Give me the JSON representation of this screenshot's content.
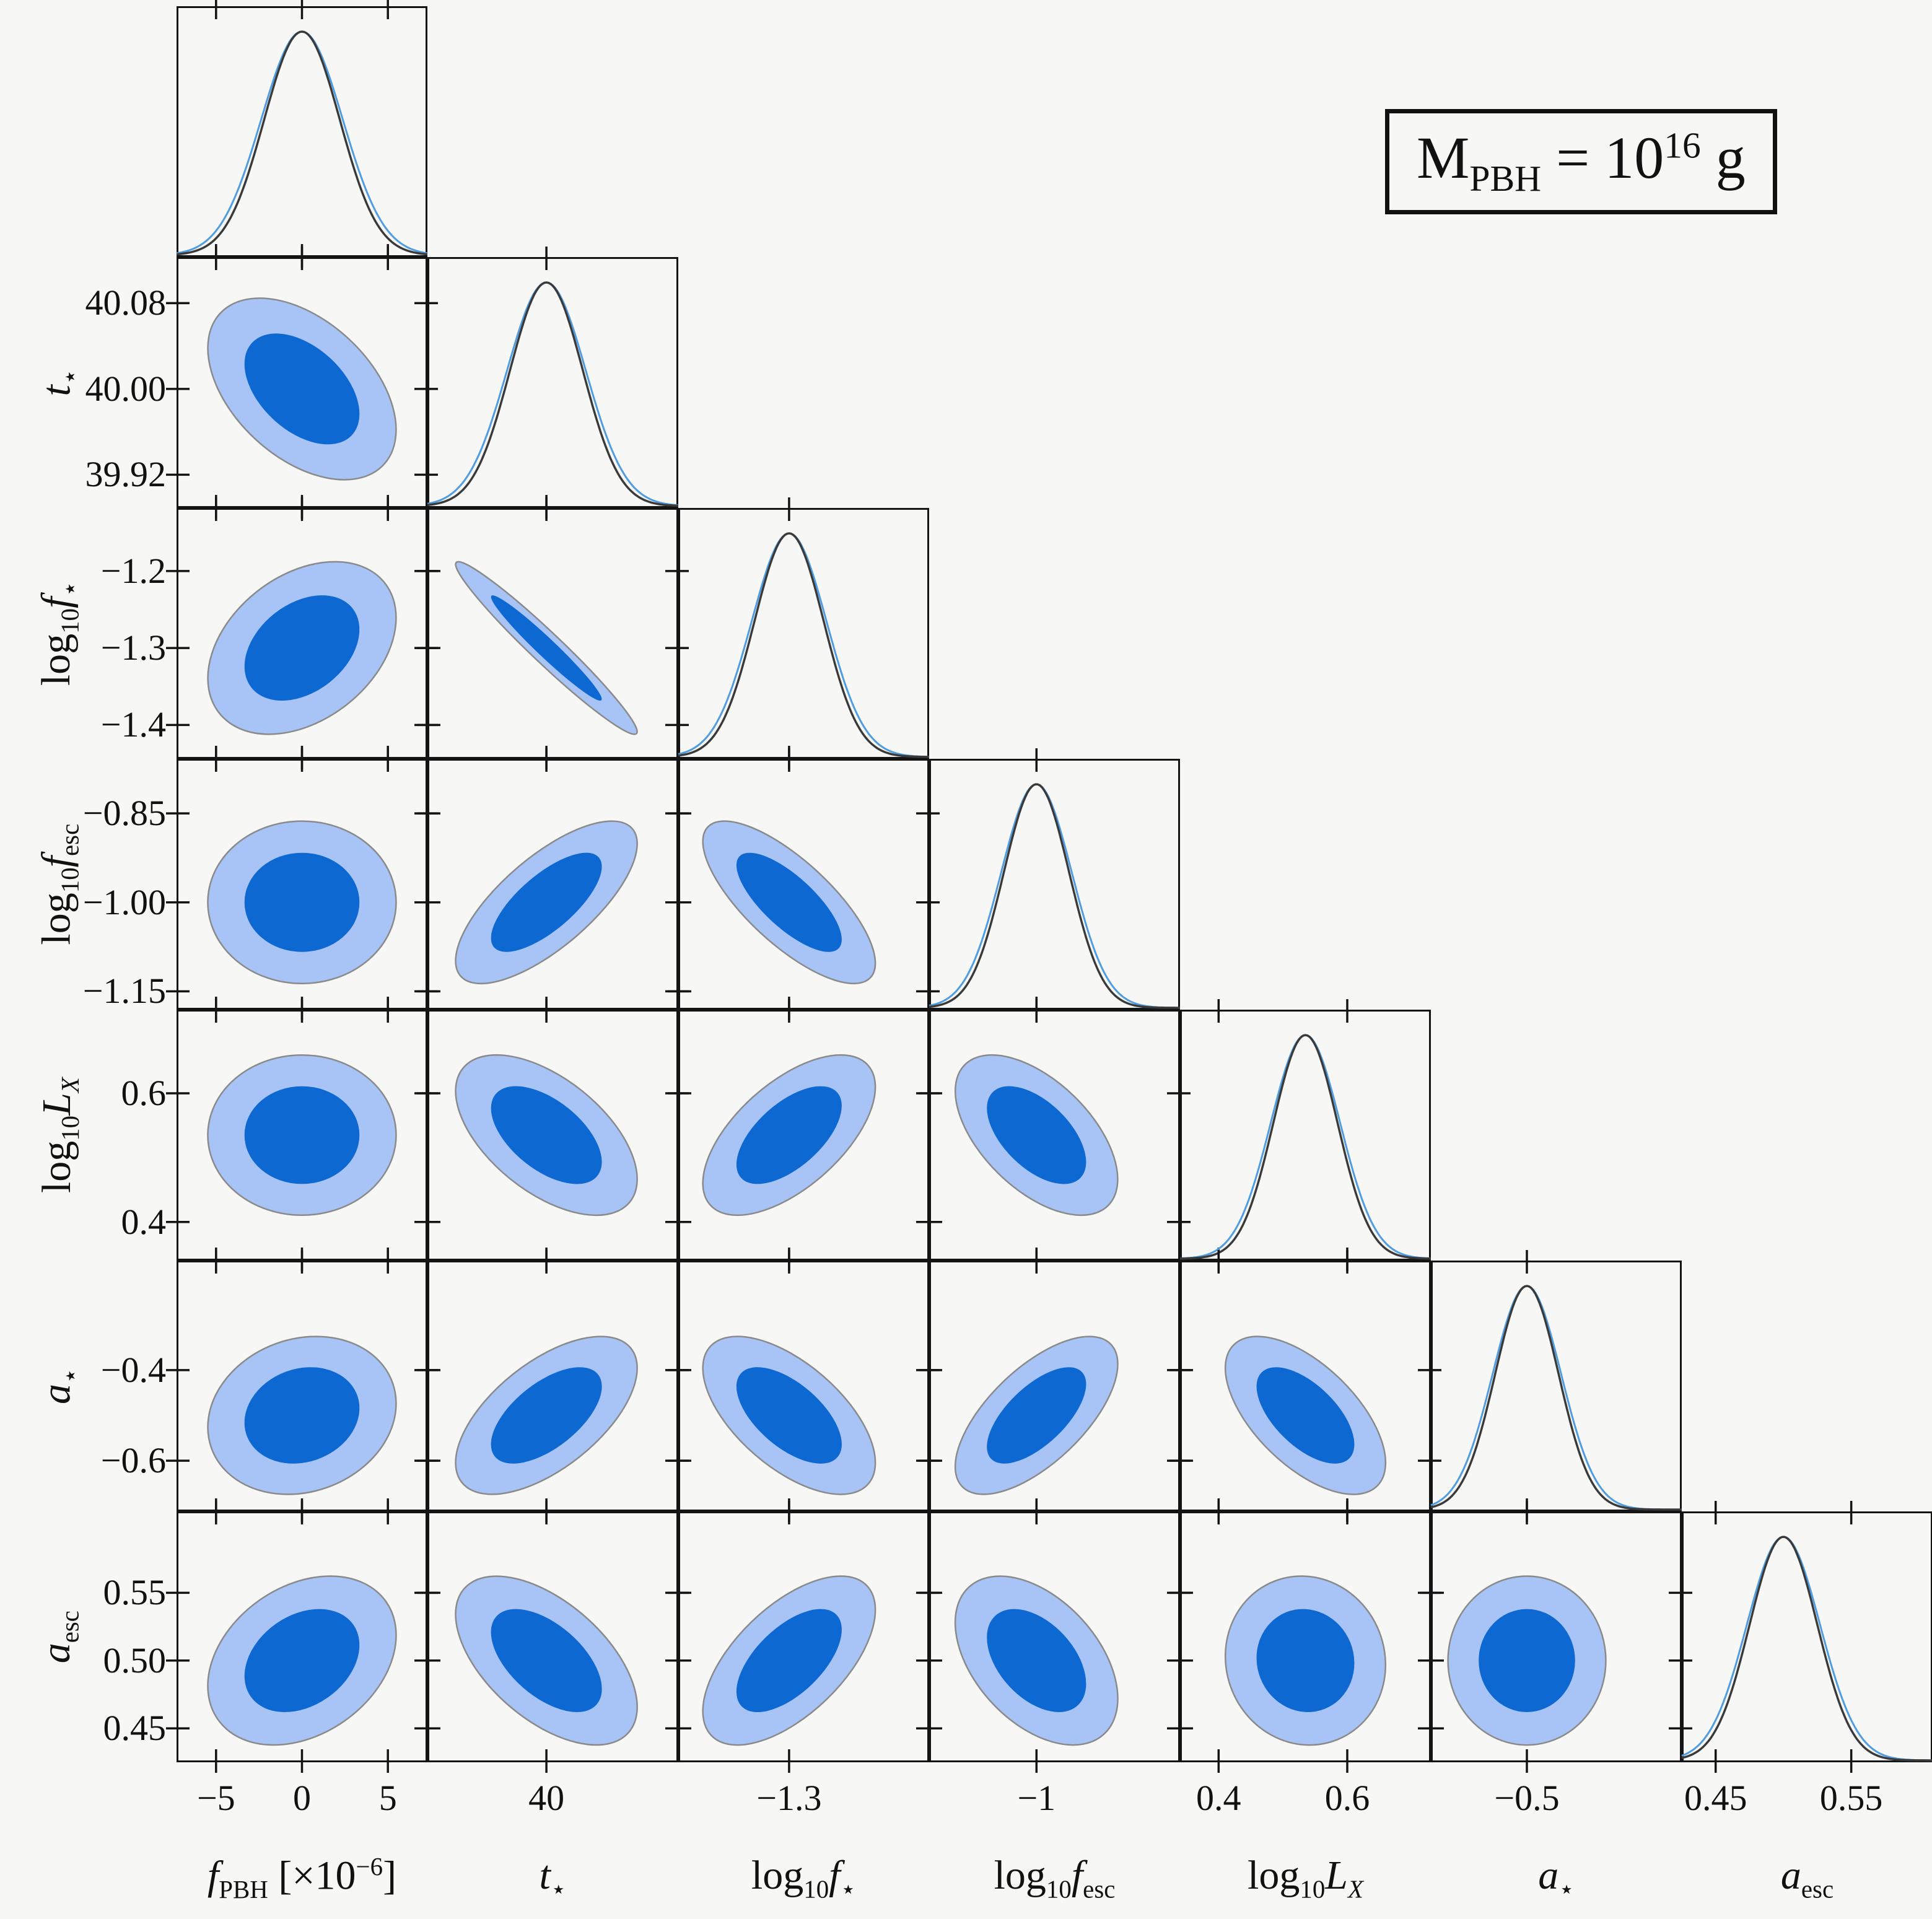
{
  "title": {
    "text": "M_PBH = 10^16 g",
    "parts": [
      {
        "t": "M",
        "s": ""
      },
      {
        "t": "PBH",
        "s": "sub"
      },
      {
        "t": " = 10",
        "s": ""
      },
      {
        "t": "16",
        "s": "sup"
      },
      {
        "t": " g",
        "s": ""
      }
    ]
  },
  "chart_data": {
    "type": "contour",
    "subtype": "corner-triangle-posterior",
    "title": "M_PBH = 10^16 g",
    "legend_position": "none",
    "grid": false,
    "confidence_levels": [
      "68%",
      "95%"
    ],
    "levels_sigma": [
      1.52,
      2.49
    ],
    "colors": {
      "contour_inner": "#0D68D2",
      "contour_outer": "#A8C4F6",
      "contour_outline": "#8a8a8a",
      "curve": "#3a3a3a",
      "curve_under": "#4f9ce0",
      "frame": "#141414",
      "background": "#f7f7f5"
    },
    "parameters": [
      {
        "id": "f_PBH",
        "label_parts": [
          {
            "t": "f",
            "s": "it"
          },
          {
            "t": "PBH",
            "s": "sub"
          },
          {
            "t": " [×10",
            "s": ""
          },
          {
            "t": "−6",
            "s": "sup"
          },
          {
            "t": "]",
            "s": ""
          }
        ],
        "mean": 0,
        "sigma": 2.2,
        "range": [
          -7.3,
          7.3
        ],
        "xticks": [
          {
            "v": -5,
            "l": "−5"
          },
          {
            "v": 0,
            "l": "0"
          },
          {
            "v": 5,
            "l": "5"
          }
        ],
        "yticks": []
      },
      {
        "id": "t_star",
        "label_parts": [
          {
            "t": "t",
            "s": "it"
          },
          {
            "t": "⋆",
            "s": "sub"
          }
        ],
        "mean": 40.0,
        "sigma": 0.034,
        "range": [
          39.889,
          40.123
        ],
        "xticks": [
          {
            "v": 40,
            "l": "40"
          }
        ],
        "yticks": [
          {
            "v": 40.08,
            "l": "40.08"
          },
          {
            "v": 40.0,
            "l": "40.00"
          },
          {
            "v": 39.92,
            "l": "39.92"
          }
        ]
      },
      {
        "id": "log10_f_star",
        "label_parts": [
          {
            "t": "log",
            "s": ""
          },
          {
            "t": "10",
            "s": "sub"
          },
          {
            "t": "f",
            "s": "it"
          },
          {
            "t": "⋆",
            "s": "sub"
          }
        ],
        "mean": -1.3,
        "sigma": 0.045,
        "range": [
          -1.444,
          -1.118
        ],
        "xticks": [
          {
            "v": -1.3,
            "l": "−1.3"
          }
        ],
        "yticks": [
          {
            "v": -1.2,
            "l": "−1.2"
          },
          {
            "v": -1.3,
            "l": "−1.3"
          },
          {
            "v": -1.4,
            "l": "−1.4"
          }
        ]
      },
      {
        "id": "log10_f_esc",
        "label_parts": [
          {
            "t": "log",
            "s": ""
          },
          {
            "t": "10",
            "s": "sub"
          },
          {
            "t": "f",
            "s": "it"
          },
          {
            "t": "esc",
            "s": "sub"
          }
        ],
        "mean": -1.0,
        "sigma": 0.055,
        "range": [
          -1.181,
          -0.758
        ],
        "xticks": [
          {
            "v": -1,
            "l": "−1"
          }
        ],
        "yticks": [
          {
            "v": -0.85,
            "l": "−0.85"
          },
          {
            "v": -1.0,
            "l": "−1.00"
          },
          {
            "v": -1.15,
            "l": "−1.15"
          }
        ]
      },
      {
        "id": "log10_L_X",
        "label_parts": [
          {
            "t": "log",
            "s": ""
          },
          {
            "t": "10",
            "s": "sub"
          },
          {
            "t": "L",
            "s": "it"
          },
          {
            "t": "X",
            "s": "itsub"
          }
        ],
        "mean": 0.535,
        "sigma": 0.05,
        "range": [
          0.34,
          0.73
        ],
        "xticks": [
          {
            "v": 0.4,
            "l": "0.4"
          },
          {
            "v": 0.6,
            "l": "0.6"
          }
        ],
        "yticks": [
          {
            "v": 0.6,
            "l": "0.6"
          },
          {
            "v": 0.4,
            "l": "0.4"
          }
        ]
      },
      {
        "id": "a_star",
        "label_parts": [
          {
            "t": "a",
            "s": "it"
          },
          {
            "t": "⋆",
            "s": "sub"
          }
        ],
        "mean": -0.5,
        "sigma": 0.07,
        "range": [
          -0.712,
          -0.158
        ],
        "xticks": [
          {
            "v": -0.5,
            "l": "−0.5"
          }
        ],
        "yticks": [
          {
            "v": -0.4,
            "l": "−0.4"
          },
          {
            "v": -0.6,
            "l": "−0.6"
          }
        ]
      },
      {
        "id": "a_esc",
        "label_parts": [
          {
            "t": "a",
            "s": "it"
          },
          {
            "t": "esc",
            "s": "sub"
          }
        ],
        "mean": 0.5,
        "sigma": 0.025,
        "range": [
          0.425,
          0.61
        ],
        "xticks": [
          {
            "v": 0.45,
            "l": "0.45"
          },
          {
            "v": 0.55,
            "l": "0.55"
          }
        ],
        "yticks": [
          {
            "v": 0.55,
            "l": "0.55"
          },
          {
            "v": 0.5,
            "l": "0.50"
          },
          {
            "v": 0.45,
            "l": "0.45"
          }
        ]
      }
    ],
    "correlation_matrix": [
      [
        1.0,
        -0.45,
        0.35,
        0.0,
        0.0,
        0.15,
        0.3
      ],
      [
        -0.45,
        1.0,
        -0.97,
        0.72,
        -0.55,
        0.6,
        -0.55
      ],
      [
        0.35,
        -0.97,
        1.0,
        -0.75,
        0.6,
        -0.6,
        0.6
      ],
      [
        0.0,
        0.72,
        -0.75,
        1.0,
        -0.55,
        0.65,
        -0.45
      ],
      [
        0.0,
        -0.55,
        0.6,
        -0.55,
        1.0,
        -0.6,
        -0.05
      ],
      [
        0.15,
        0.6,
        -0.6,
        0.65,
        -0.6,
        1.0,
        0.0
      ],
      [
        0.3,
        -0.55,
        0.6,
        -0.45,
        -0.05,
        0.0,
        1.0
      ]
    ]
  }
}
